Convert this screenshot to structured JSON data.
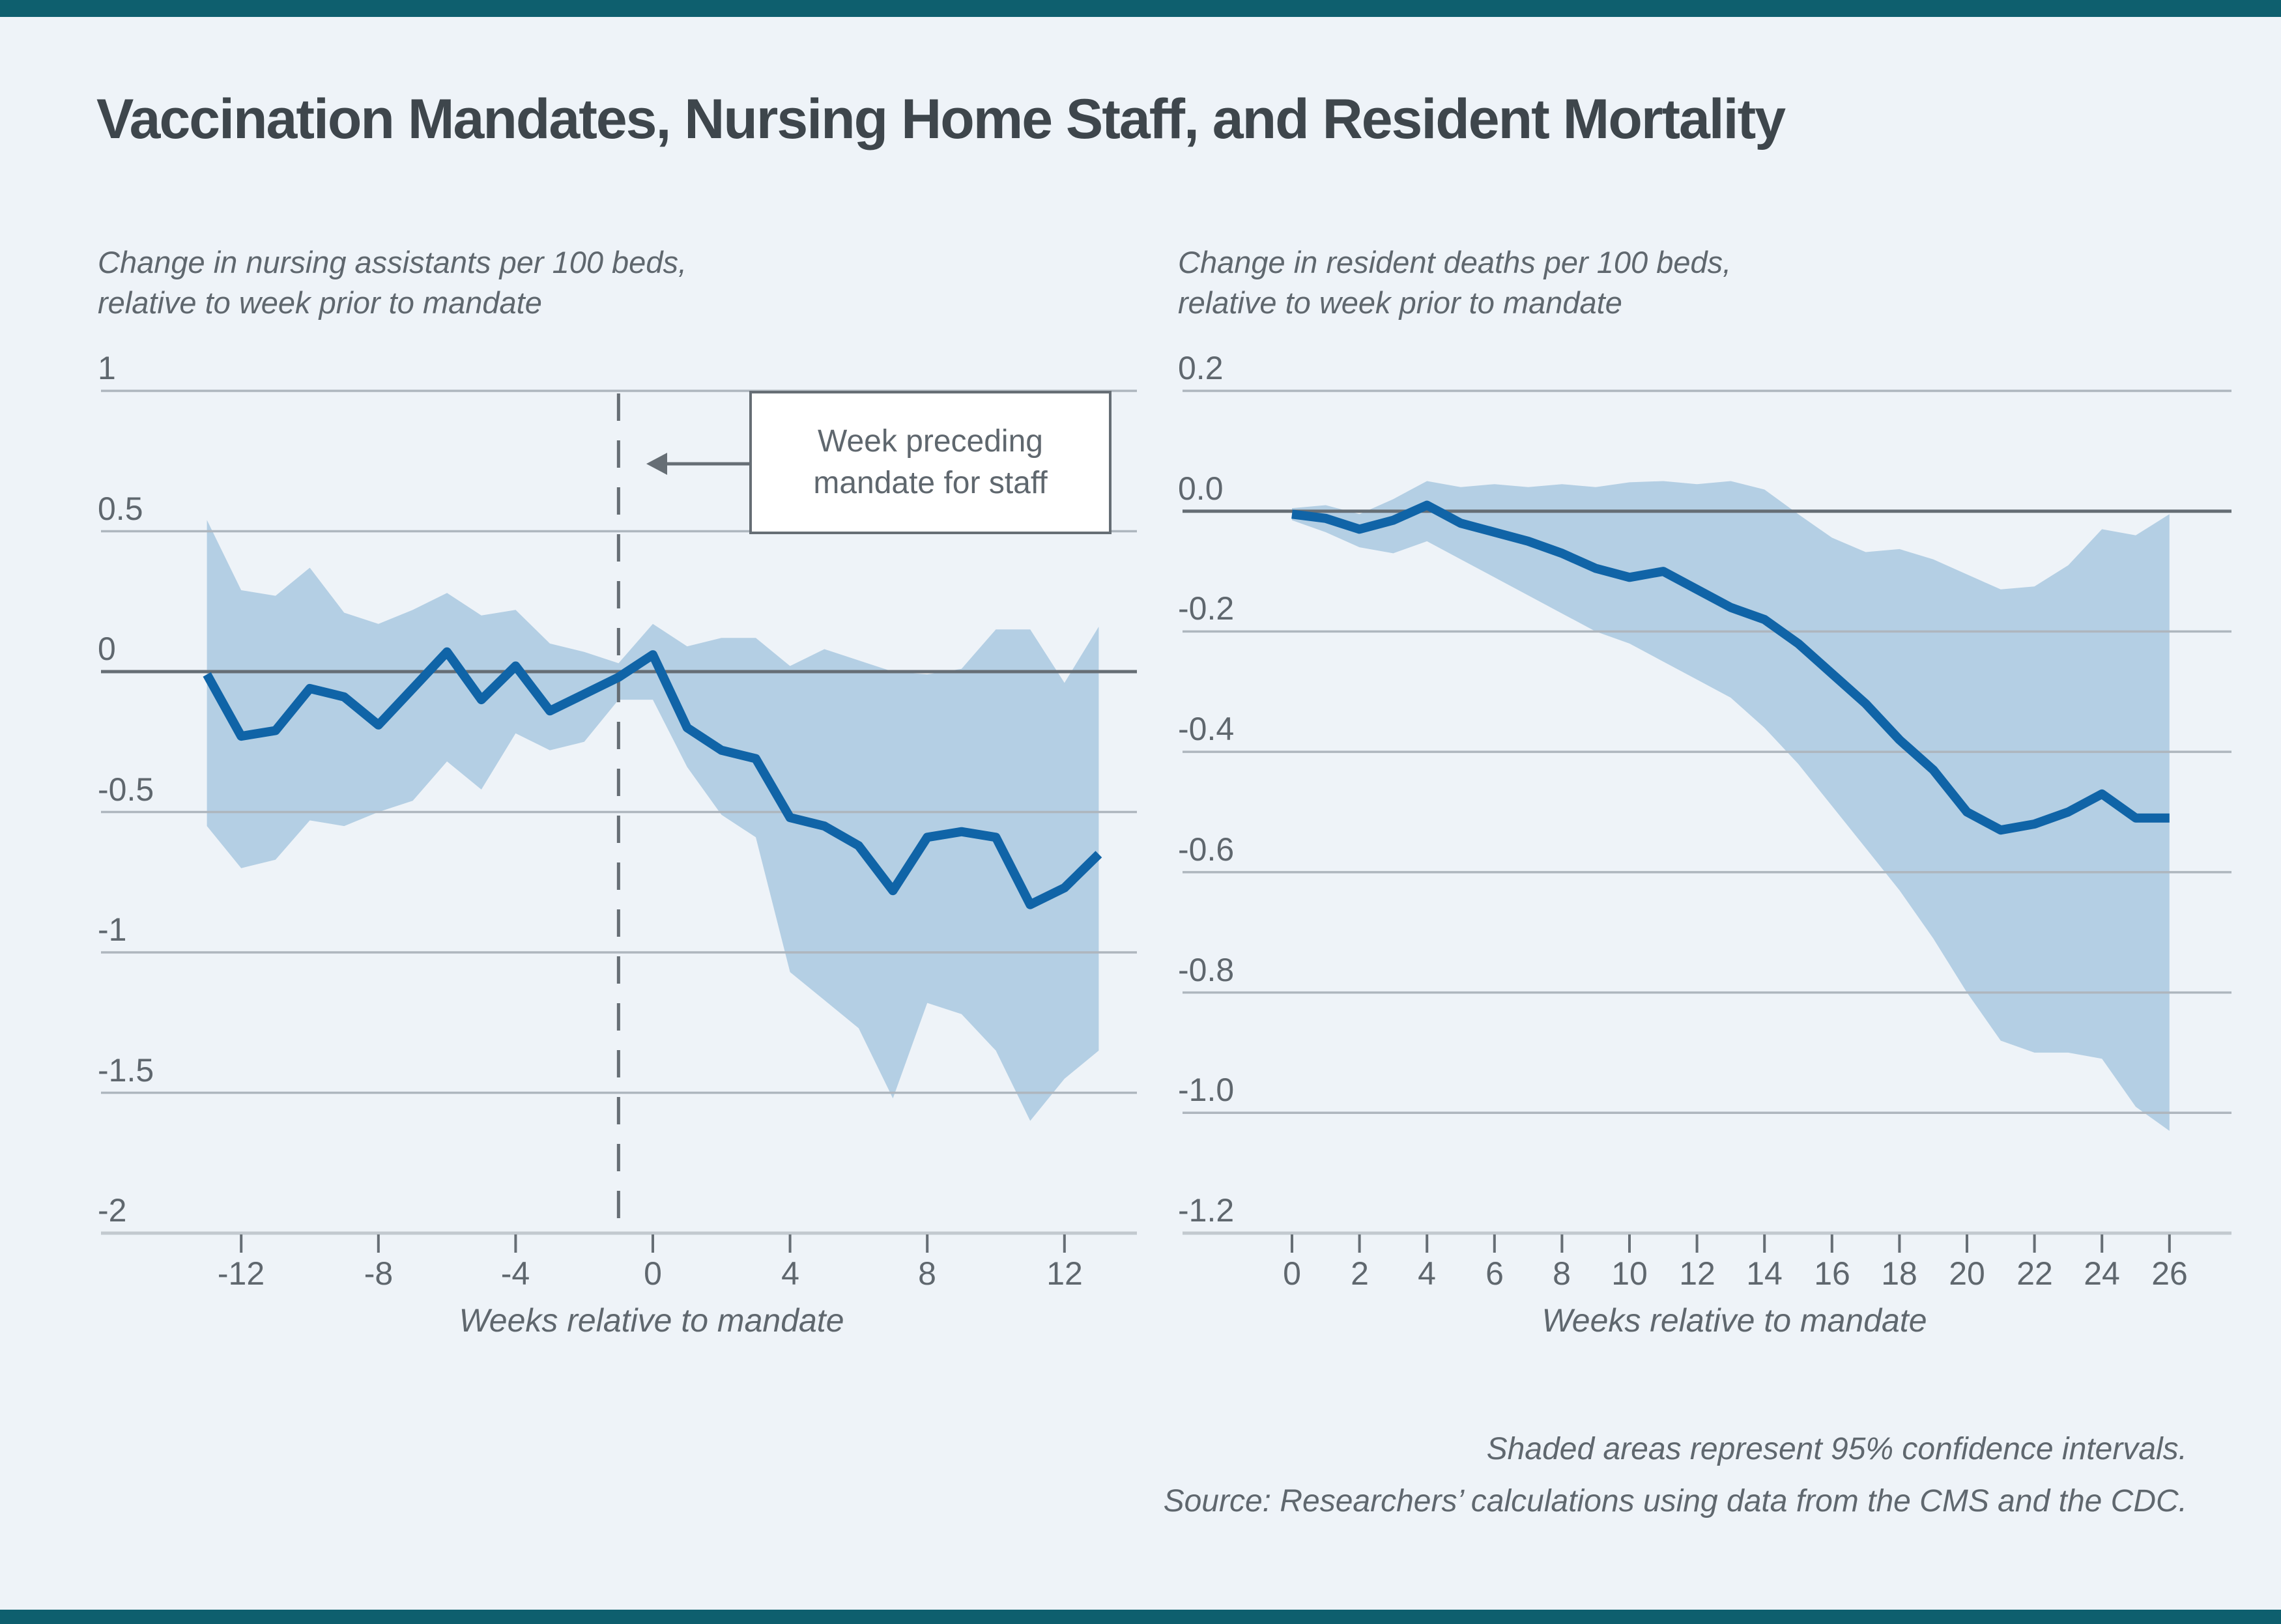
{
  "page": {
    "title": "Vaccination Mandates, Nursing Home Staff, and Resident Mortality",
    "footer_lines": [
      "Shaded areas represent 95% confidence intervals.",
      "Source: Researchers’ calculations using data from the CMS and the CDC."
    ],
    "colors": {
      "bg": "#eef3f8",
      "accent": "#0e5f6e",
      "line": "#1064a7",
      "band": "#b4cfe4",
      "grid": "#aeb6be",
      "zero": "#666e75",
      "axis": "#c2c9cf",
      "text_dark": "#3e464c",
      "text_gray": "#5f676e"
    }
  },
  "chart_data": [
    {
      "type": "line",
      "subtitle_lines": [
        "Change in nursing assistants per 100 beds,",
        "relative to week prior to mandate"
      ],
      "xlabel": "Weeks relative to mandate",
      "ylim": [
        -2,
        1
      ],
      "xlim": [
        -13,
        13
      ],
      "yticks": [
        1,
        0.5,
        0,
        -0.5,
        -1,
        -1.5,
        -2
      ],
      "ytick_labels": [
        "1",
        "0.5",
        "0",
        "-0.5",
        "-1",
        "-1.5",
        "-2"
      ],
      "xticks": [
        -12,
        -8,
        -4,
        0,
        4,
        8,
        12
      ],
      "xtick_labels": [
        "-12",
        "-8",
        "-4",
        "0",
        "4",
        "8",
        "12"
      ],
      "grid": true,
      "legend": "none",
      "weeks": [
        -13,
        -12,
        -11,
        -10,
        -9,
        -8,
        -7,
        -6,
        -5,
        -4,
        -3,
        -2,
        -1,
        0,
        1,
        2,
        3,
        4,
        5,
        6,
        7,
        8,
        9,
        10,
        11,
        12,
        13
      ],
      "line": [
        -0.01,
        -0.23,
        -0.21,
        -0.06,
        -0.09,
        -0.19,
        -0.06,
        0.07,
        -0.1,
        0.02,
        -0.14,
        -0.08,
        -0.02,
        0.06,
        -0.2,
        -0.28,
        -0.31,
        -0.52,
        -0.55,
        -0.62,
        -0.78,
        -0.59,
        -0.57,
        -0.59,
        -0.83,
        -0.77,
        -0.65
      ],
      "ci_upper": [
        0.54,
        0.29,
        0.27,
        0.37,
        0.21,
        0.17,
        0.22,
        0.28,
        0.2,
        0.22,
        0.1,
        0.07,
        0.03,
        0.17,
        0.09,
        0.12,
        0.12,
        0.02,
        0.08,
        0.04,
        0.0,
        -0.01,
        0.01,
        0.15,
        0.15,
        -0.04,
        0.16
      ],
      "ci_lower": [
        -0.55,
        -0.7,
        -0.67,
        -0.53,
        -0.55,
        -0.5,
        -0.46,
        -0.32,
        -0.42,
        -0.22,
        -0.28,
        -0.25,
        -0.1,
        -0.1,
        -0.34,
        -0.51,
        -0.59,
        -1.07,
        -1.17,
        -1.27,
        -1.52,
        -1.18,
        -1.22,
        -1.35,
        -1.6,
        -1.45,
        -1.35
      ],
      "annotation": {
        "lines": [
          "Week preceding",
          "mandate for staff"
        ],
        "week": -1
      }
    },
    {
      "type": "line",
      "subtitle_lines": [
        "Change in resident deaths per 100 beds,",
        "relative to week prior to mandate"
      ],
      "xlabel": "Weeks relative to mandate",
      "ylim": [
        -1.2,
        0.2
      ],
      "xlim": [
        0,
        26
      ],
      "yticks": [
        0.2,
        0,
        -0.2,
        -0.4,
        -0.6,
        -0.8,
        -1,
        -1.2
      ],
      "ytick_labels": [
        "0.2",
        "0.0",
        "-0.2",
        "-0.4",
        "-0.6",
        "-0.8",
        "-1.0",
        "-1.2"
      ],
      "xticks": [
        0,
        2,
        4,
        6,
        8,
        10,
        12,
        14,
        16,
        18,
        20,
        22,
        24,
        26
      ],
      "xtick_labels": [
        "0",
        "2",
        "4",
        "6",
        "8",
        "10",
        "12",
        "14",
        "16",
        "18",
        "20",
        "22",
        "24",
        "26"
      ],
      "grid": true,
      "legend": "none",
      "weeks": [
        0,
        1,
        2,
        3,
        4,
        5,
        6,
        7,
        8,
        9,
        10,
        11,
        12,
        13,
        14,
        15,
        16,
        17,
        18,
        19,
        20,
        21,
        22,
        23,
        24,
        25,
        26
      ],
      "line": [
        -0.005,
        -0.012,
        -0.03,
        -0.015,
        0.01,
        -0.02,
        -0.035,
        -0.05,
        -0.07,
        -0.095,
        -0.11,
        -0.1,
        -0.13,
        -0.16,
        -0.18,
        -0.22,
        -0.27,
        -0.32,
        -0.38,
        -0.43,
        -0.5,
        -0.53,
        -0.52,
        -0.5,
        -0.47,
        -0.51,
        -0.51
      ],
      "ci_upper": [
        0.005,
        0.01,
        -0.005,
        0.02,
        0.05,
        0.04,
        0.045,
        0.04,
        0.045,
        0.04,
        0.048,
        0.05,
        0.045,
        0.05,
        0.036,
        -0.005,
        -0.044,
        -0.068,
        -0.063,
        -0.08,
        -0.105,
        -0.13,
        -0.125,
        -0.09,
        -0.03,
        -0.04,
        -0.005
      ],
      "ci_lower": [
        -0.015,
        -0.035,
        -0.06,
        -0.07,
        -0.05,
        -0.08,
        -0.11,
        -0.14,
        -0.17,
        -0.2,
        -0.22,
        -0.25,
        -0.28,
        -0.31,
        -0.36,
        -0.42,
        -0.49,
        -0.56,
        -0.63,
        -0.71,
        -0.8,
        -0.88,
        -0.9,
        -0.9,
        -0.91,
        -0.99,
        -1.03
      ]
    }
  ]
}
